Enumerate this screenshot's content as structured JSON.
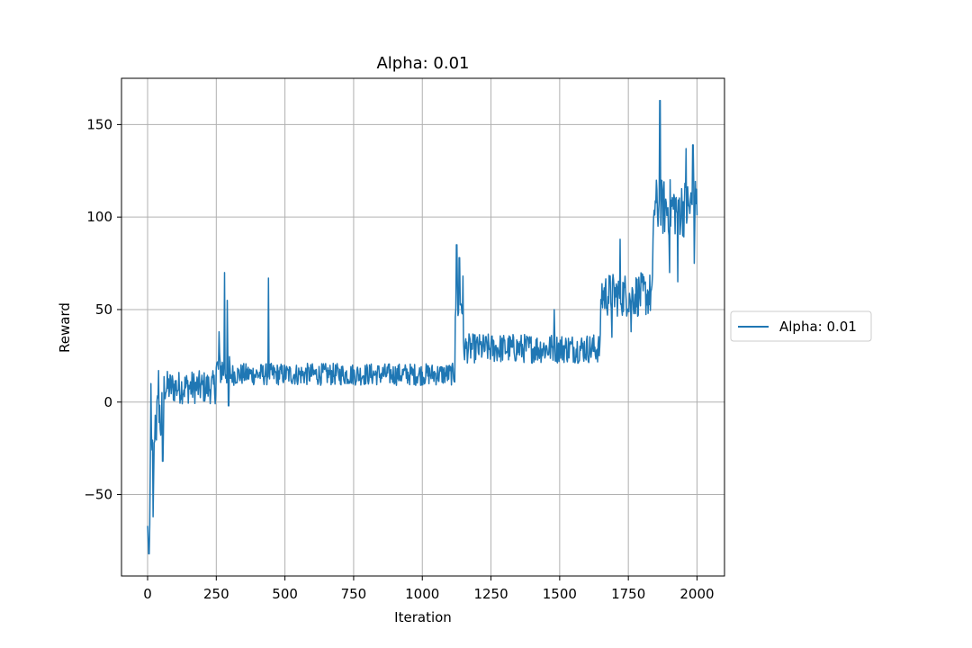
{
  "colors": {
    "series": "#1f77b4",
    "grid": "#b0b0b0",
    "axes": "#000000",
    "legend_border": "#cccccc"
  },
  "chart_data": {
    "type": "line",
    "title": "Alpha: 0.01",
    "xlabel": "Iteration",
    "ylabel": "Reward",
    "xlim": [
      -95,
      2100
    ],
    "ylim": [
      -94,
      175
    ],
    "grid": true,
    "legend": {
      "placement": "outside-right",
      "entries": [
        "Alpha: 0.01"
      ]
    },
    "x_ticks": [
      0,
      250,
      500,
      750,
      1000,
      1250,
      1500,
      1750,
      2000
    ],
    "x_tick_labels": [
      "0",
      "250",
      "500",
      "750",
      "1000",
      "1250",
      "1500",
      "1750",
      "2000"
    ],
    "y_ticks": [
      -50,
      0,
      50,
      100,
      150
    ],
    "y_tick_labels": [
      "−50",
      "0",
      "50",
      "100",
      "150"
    ],
    "series": [
      {
        "name": "Alpha: 0.01",
        "segments": [
          {
            "x0": 0,
            "x1": 10,
            "mean": -70,
            "amp": 10
          },
          {
            "x0": 10,
            "x1": 25,
            "mean": -35,
            "amp": 22
          },
          {
            "x0": 25,
            "x1": 60,
            "mean": -10,
            "amp": 18
          },
          {
            "x0": 60,
            "x1": 250,
            "mean": 8,
            "amp": 9
          },
          {
            "x0": 250,
            "x1": 300,
            "mean": 18,
            "amp": 10
          },
          {
            "x0": 300,
            "x1": 1120,
            "mean": 15,
            "amp": 6
          },
          {
            "x0": 1120,
            "x1": 1150,
            "mean": 55,
            "amp": 15
          },
          {
            "x0": 1150,
            "x1": 1650,
            "mean": 29,
            "amp": 8
          },
          {
            "x0": 1650,
            "x1": 1840,
            "mean": 58,
            "amp": 12
          },
          {
            "x0": 1840,
            "x1": 2000,
            "mean": 105,
            "amp": 16
          }
        ],
        "peaks": [
          {
            "x": 5,
            "y": -82
          },
          {
            "x": 12,
            "y": 10
          },
          {
            "x": 20,
            "y": -62
          },
          {
            "x": 40,
            "y": 17
          },
          {
            "x": 55,
            "y": -32
          },
          {
            "x": 260,
            "y": 38
          },
          {
            "x": 280,
            "y": 70
          },
          {
            "x": 290,
            "y": 55
          },
          {
            "x": 295,
            "y": -2
          },
          {
            "x": 440,
            "y": 67
          },
          {
            "x": 1125,
            "y": 85
          },
          {
            "x": 1135,
            "y": 78
          },
          {
            "x": 1480,
            "y": 50
          },
          {
            "x": 1720,
            "y": 88
          },
          {
            "x": 1690,
            "y": 35
          },
          {
            "x": 1760,
            "y": 38
          },
          {
            "x": 1840,
            "y": 88
          },
          {
            "x": 1865,
            "y": 163
          },
          {
            "x": 1900,
            "y": 70
          },
          {
            "x": 1930,
            "y": 65
          },
          {
            "x": 1960,
            "y": 137
          },
          {
            "x": 1985,
            "y": 139
          },
          {
            "x": 1990,
            "y": 75
          },
          {
            "x": 1998,
            "y": 115
          }
        ]
      }
    ]
  }
}
